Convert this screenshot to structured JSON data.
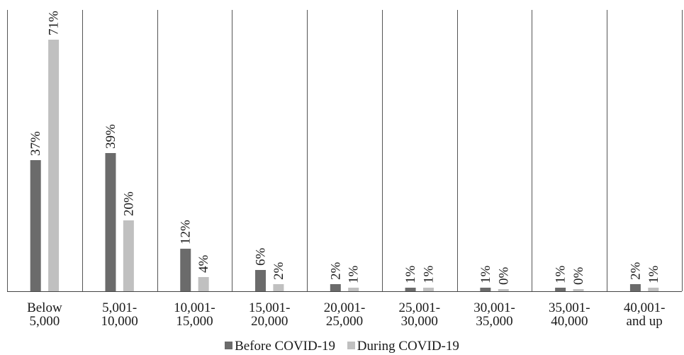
{
  "chart_data": {
    "type": "bar",
    "categories": [
      [
        "Below",
        "5,000"
      ],
      [
        "5,001-",
        "10,000"
      ],
      [
        "10,001-",
        "15,000"
      ],
      [
        "15,001-",
        "20,000"
      ],
      [
        "20,001-",
        "25,000"
      ],
      [
        "25,001-",
        "30,000"
      ],
      [
        "30,001-",
        "35,000"
      ],
      [
        "35,001-",
        "40,000"
      ],
      [
        "40,001-",
        "and up"
      ]
    ],
    "series": [
      {
        "name": "Before COVID-19",
        "color": "#6b6b6b",
        "values": [
          37,
          39,
          12,
          6,
          2,
          1,
          1,
          1,
          2
        ],
        "labels": [
          "37%",
          "39%",
          "12%",
          "6%",
          "2%",
          "1%",
          "1%",
          "1%",
          "2%"
        ]
      },
      {
        "name": "During COVID-19",
        "color": "#c0c0c0",
        "values": [
          71,
          20,
          4,
          2,
          1,
          1,
          0,
          0,
          1
        ],
        "labels": [
          "71%",
          "20%",
          "4%",
          "2%",
          "1%",
          "1%",
          "0%",
          "0%",
          "1%"
        ]
      }
    ],
    "ylim": [
      0,
      82
    ],
    "grid": "vertical category separators",
    "legend": "bottom-center"
  }
}
